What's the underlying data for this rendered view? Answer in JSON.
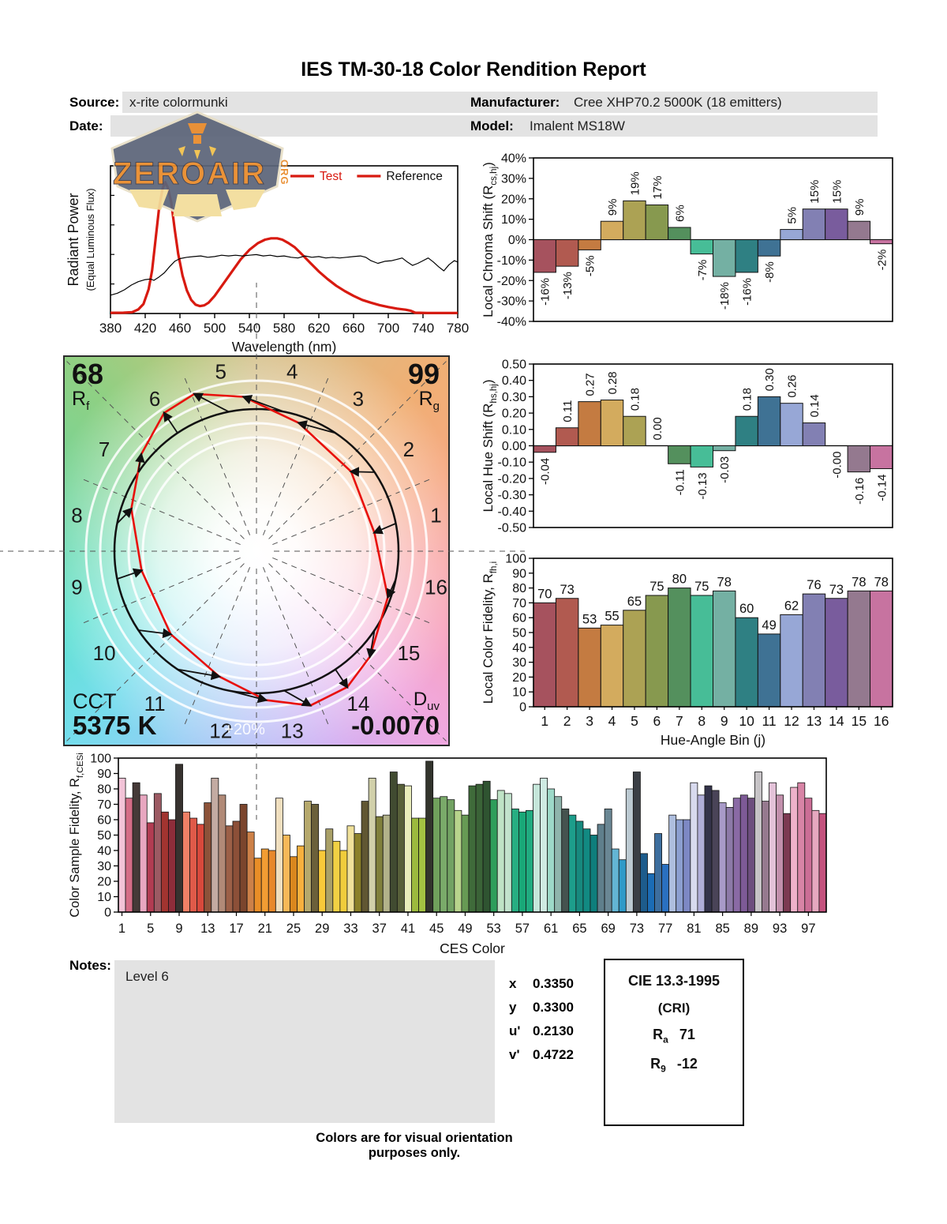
{
  "title": "IES TM-30-18 Color Rendition Report",
  "header": {
    "source_label": "Source:",
    "source_value": "x-rite colormunki",
    "date_label": "Date:",
    "date_value": "",
    "manufacturer_label": "Manufacturer:",
    "manufacturer_value": "Cree XHP70.2 5000K (18 emitters)",
    "model_label": "Model:",
    "model_value": "Imalent MS18W"
  },
  "logo": {
    "text": "ZEROAIR",
    "suffix": "ORG"
  },
  "notes": {
    "label": "Notes:",
    "value": "Level 6"
  },
  "chromaticity": {
    "rows": [
      {
        "label": "x",
        "value": "0.3350"
      },
      {
        "label": "y",
        "value": "0.3300"
      },
      {
        "label": "u'",
        "value": "0.2130"
      },
      {
        "label": "v'",
        "value": "0.4722"
      }
    ]
  },
  "cri_box": {
    "title": "CIE 13.3-1995",
    "subtitle": "(CRI)",
    "rows": [
      {
        "label": "R",
        "sub": "a",
        "value": "71"
      },
      {
        "label": "R",
        "sub": "9",
        "value": "-12"
      }
    ]
  },
  "footer": "Colors are for visual orientation purposes only.",
  "cvg": {
    "rf_value": "68",
    "rf_label": "R",
    "rf_sub": "f",
    "rg_value": "99",
    "rg_label": "R",
    "rg_sub": "g",
    "cct_label": "CCT",
    "cct_value": "5375 K",
    "duv_label": "D",
    "duv_sub": "uv",
    "duv_value": "-0.0070",
    "ring_label": "+20%",
    "bins": [
      "1",
      "2",
      "3",
      "4",
      "5",
      "6",
      "7",
      "8",
      "9",
      "10",
      "11",
      "12",
      "13",
      "14",
      "15",
      "16"
    ]
  },
  "bin_colors": [
    "#a6525e",
    "#b15a50",
    "#c47b41",
    "#d3ab5e",
    "#aca254",
    "#87994f",
    "#54905d",
    "#47bd97",
    "#74b0a3",
    "#2f8083",
    "#3f7294",
    "#97a7d6",
    "#8280b3",
    "#795c9d",
    "#94798f",
    "#c773a0"
  ],
  "chart_data": [
    {
      "id": "spd",
      "type": "line",
      "xlabel": "Wavelength (nm)",
      "ylabel": "Radiant Power",
      "ylabel2": "(Equal Luminous Flux)",
      "xlim": [
        380,
        780
      ],
      "ylim": [
        0,
        1.09
      ],
      "x_ticks": [
        380,
        420,
        460,
        500,
        540,
        580,
        620,
        660,
        700,
        740,
        780
      ],
      "legend": [
        {
          "label": "Test",
          "text_color": "#d81a10",
          "line_color": "#d81a10"
        },
        {
          "label": "Reference",
          "text_color": "#111111",
          "line_color": "#d81a10"
        }
      ],
      "series": [
        {
          "name": "Test",
          "color": "#d81a10",
          "width": 3.2,
          "x": [
            380,
            395,
            405,
            412,
            418,
            424,
            428,
            432,
            436,
            440,
            443,
            446,
            450,
            454,
            458,
            463,
            468,
            473,
            478,
            483,
            488,
            493,
            500,
            510,
            520,
            530,
            540,
            550,
            558,
            565,
            572,
            578,
            585,
            592,
            600,
            610,
            620,
            630,
            640,
            650,
            660,
            670,
            680,
            690,
            700,
            710,
            720,
            726,
            731,
            736,
            745,
            760,
            780
          ],
          "y": [
            0.005,
            0.006,
            0.01,
            0.03,
            0.07,
            0.18,
            0.32,
            0.55,
            0.78,
            0.92,
            0.97,
            0.93,
            0.82,
            0.62,
            0.44,
            0.28,
            0.17,
            0.1,
            0.065,
            0.055,
            0.06,
            0.08,
            0.13,
            0.22,
            0.31,
            0.4,
            0.47,
            0.52,
            0.545,
            0.555,
            0.555,
            0.545,
            0.52,
            0.49,
            0.44,
            0.375,
            0.31,
            0.255,
            0.205,
            0.165,
            0.13,
            0.1,
            0.08,
            0.062,
            0.048,
            0.036,
            0.028,
            0.02,
            0.006,
            0.005,
            0.004,
            0.004,
            0.004
          ]
        },
        {
          "name": "Reference",
          "color": "#000000",
          "width": 1.2,
          "x": [
            380,
            388,
            396,
            404,
            412,
            420,
            426,
            430,
            436,
            442,
            448,
            454,
            460,
            468,
            476,
            484,
            492,
            500,
            508,
            516,
            524,
            532,
            540,
            548,
            556,
            564,
            572,
            580,
            588,
            596,
            604,
            612,
            620,
            628,
            636,
            644,
            652,
            660,
            668,
            674,
            680,
            688,
            696,
            704,
            710,
            716,
            722,
            728,
            734,
            740,
            746,
            752,
            758,
            764,
            770,
            776,
            780
          ],
          "y": [
            0.135,
            0.15,
            0.175,
            0.21,
            0.235,
            0.25,
            0.255,
            0.245,
            0.27,
            0.3,
            0.345,
            0.385,
            0.405,
            0.415,
            0.42,
            0.425,
            0.415,
            0.42,
            0.43,
            0.425,
            0.43,
            0.425,
            0.43,
            0.435,
            0.425,
            0.43,
            0.42,
            0.425,
            0.415,
            0.41,
            0.425,
            0.415,
            0.42,
            0.41,
            0.415,
            0.41,
            0.415,
            0.42,
            0.425,
            0.415,
            0.39,
            0.37,
            0.385,
            0.39,
            0.4,
            0.41,
            0.38,
            0.355,
            0.37,
            0.39,
            0.41,
            0.38,
            0.345,
            0.315,
            0.36,
            0.39,
            0.38
          ]
        }
      ]
    },
    {
      "id": "chroma_shift",
      "type": "bar",
      "ylabel_parts": [
        [
          "Local Chroma Shift (R",
          0
        ],
        [
          "cs,hj",
          1
        ],
        [
          ")",
          0
        ]
      ],
      "ylim": [
        -40,
        40
      ],
      "yticks": [
        {
          "v": 40,
          "t": "40%"
        },
        {
          "v": 30,
          "t": "30%"
        },
        {
          "v": 20,
          "t": "20%"
        },
        {
          "v": 10,
          "t": "10%"
        },
        {
          "v": 0,
          "t": "0%"
        },
        {
          "v": -10,
          "t": "-10%"
        },
        {
          "v": -20,
          "t": "-20%"
        },
        {
          "v": -30,
          "t": "-30%"
        },
        {
          "v": -40,
          "t": "-40%"
        }
      ],
      "values": [
        -16,
        -13,
        -5,
        9,
        19,
        17,
        6,
        -7,
        -18,
        -16,
        -8,
        5,
        15,
        15,
        9,
        -2
      ],
      "labels": [
        "-16%",
        "-13%",
        "-5%",
        "9%",
        "19%",
        "17%",
        "6%",
        "-7%",
        "-18%",
        "-16%",
        "-8%",
        "5%",
        "15%",
        "15%",
        "9%",
        "-2%"
      ],
      "label_mode": "rotated"
    },
    {
      "id": "hue_shift",
      "type": "bar",
      "ylabel_parts": [
        [
          "Local Hue Shift (R",
          0
        ],
        [
          "hs,hj",
          1
        ],
        [
          ")",
          0
        ]
      ],
      "ylim": [
        -0.5,
        0.5
      ],
      "yticks": [
        {
          "v": 0.5,
          "t": "0.50"
        },
        {
          "v": 0.4,
          "t": "0.40"
        },
        {
          "v": 0.3,
          "t": "0.30"
        },
        {
          "v": 0.2,
          "t": "0.20"
        },
        {
          "v": 0.1,
          "t": "0.10"
        },
        {
          "v": 0,
          "t": "0.00"
        },
        {
          "v": -0.1,
          "t": "-0.10"
        },
        {
          "v": -0.2,
          "t": "-0.20"
        },
        {
          "v": -0.3,
          "t": "-0.30"
        },
        {
          "v": -0.4,
          "t": "-0.40"
        },
        {
          "v": -0.5,
          "t": "-0.50"
        }
      ],
      "values": [
        -0.04,
        0.11,
        0.27,
        0.28,
        0.18,
        0,
        -0.11,
        -0.13,
        -0.03,
        0.18,
        0.3,
        0.26,
        0.14,
        0,
        -0.16,
        -0.14
      ],
      "labels": [
        "-0.04",
        "0.11",
        "0.27",
        "0.28",
        "0.18",
        "0.00",
        "-0.11",
        "-0.13",
        "-0.03",
        "0.18",
        "0.30",
        "0.26",
        "0.14",
        "-0.00",
        "-0.16",
        "-0.14"
      ],
      "label_mode": "rotated"
    },
    {
      "id": "local_fidelity",
      "type": "bar",
      "ylabel_parts": [
        [
          "Local Color Fidelity, R",
          0
        ],
        [
          "fh,i",
          1
        ]
      ],
      "xlabel": "Hue-Angle Bin (j)",
      "ylim": [
        0,
        100
      ],
      "yticks": [
        {
          "v": 100,
          "t": "100"
        },
        {
          "v": 90,
          "t": "90"
        },
        {
          "v": 80,
          "t": "80"
        },
        {
          "v": 70,
          "t": "70"
        },
        {
          "v": 60,
          "t": "60"
        },
        {
          "v": 50,
          "t": "50"
        },
        {
          "v": 40,
          "t": "40"
        },
        {
          "v": 30,
          "t": "30"
        },
        {
          "v": 20,
          "t": "20"
        },
        {
          "v": 10,
          "t": "10"
        },
        {
          "v": 0,
          "t": "0"
        }
      ],
      "values": [
        70,
        73,
        53,
        55,
        65,
        75,
        80,
        75,
        78,
        60,
        49,
        62,
        76,
        73,
        78,
        78
      ],
      "labels": [
        "70",
        "73",
        "53",
        "55",
        "65",
        "75",
        "80",
        "75",
        "78",
        "60",
        "49",
        "62",
        "76",
        "73",
        "78",
        "78"
      ],
      "label_mode": "top",
      "xticks": [
        "1",
        "2",
        "3",
        "4",
        "5",
        "6",
        "7",
        "8",
        "9",
        "10",
        "11",
        "12",
        "13",
        "14",
        "15",
        "16"
      ]
    },
    {
      "id": "ces",
      "type": "bar",
      "ylabel_parts": [
        [
          "Color Sample Fidelity, R",
          0
        ],
        [
          "f,CESi",
          1
        ]
      ],
      "xlabel": "CES Color",
      "ylim": [
        0,
        100
      ],
      "yticks": [
        {
          "v": 100,
          "t": "100"
        },
        {
          "v": 90,
          "t": "90"
        },
        {
          "v": 80,
          "t": "80"
        },
        {
          "v": 70,
          "t": "70"
        },
        {
          "v": 60,
          "t": "60"
        },
        {
          "v": 50,
          "t": "50"
        },
        {
          "v": 40,
          "t": "40"
        },
        {
          "v": 30,
          "t": "30"
        },
        {
          "v": 20,
          "t": "20"
        },
        {
          "v": 10,
          "t": "10"
        },
        {
          "v": 0,
          "t": "0"
        }
      ],
      "xtick_step": 4,
      "values": [
        87,
        74,
        84,
        76,
        58,
        77,
        65,
        60,
        96,
        65,
        61,
        57,
        71,
        87,
        76,
        56,
        59,
        70,
        52,
        35,
        41,
        40,
        74,
        50,
        36,
        43,
        72,
        70,
        40,
        54,
        46,
        40,
        56,
        51,
        72,
        87,
        62,
        63,
        91,
        83,
        82,
        61,
        61,
        98,
        74,
        75,
        73,
        66,
        63,
        82,
        83,
        85,
        73,
        79,
        77,
        67,
        65,
        66,
        83,
        87,
        80,
        75,
        67,
        63,
        59,
        54,
        50,
        57,
        67,
        41,
        34,
        80,
        91,
        38,
        25,
        51,
        31,
        63,
        60,
        60,
        84,
        76,
        82,
        79,
        71,
        68,
        74,
        76,
        74,
        91,
        72,
        84,
        76,
        64,
        81,
        84,
        74,
        66,
        64
      ],
      "colors": [
        "#f2c3d7",
        "#d56d87",
        "#463a38",
        "#e8a7c0",
        "#b23c52",
        "#9c5a63",
        "#a23430",
        "#8e2d3a",
        "#37322f",
        "#f08066",
        "#df5a49",
        "#d8493c",
        "#8c5239",
        "#c3aba2",
        "#b18a77",
        "#9c6047",
        "#8c5038",
        "#7b452d",
        "#cd8148",
        "#e98e27",
        "#f29d33",
        "#e8882b",
        "#f0dfbf",
        "#f7b858",
        "#d9871e",
        "#f7b03e",
        "#b5a86c",
        "#6b603a",
        "#f8c93a",
        "#a9a068",
        "#f1d144",
        "#f0cc3b",
        "#f0e19a",
        "#8b8029",
        "#605632",
        "#d1d0aa",
        "#80803c",
        "#b2b28a",
        "#414b31",
        "#58603a",
        "#e9edbb",
        "#9cba3e",
        "#a3c242",
        "#32342c",
        "#70a05c",
        "#7aaa6a",
        "#72a263",
        "#b8d48c",
        "#679a54",
        "#3f6b3a",
        "#3a6337",
        "#2f5431",
        "#2e9e5b",
        "#bfe3c6",
        "#c2e3cd",
        "#27ae82",
        "#19a878",
        "#20ab80",
        "#c5e6da",
        "#cfeae2",
        "#9dd9c8",
        "#8fb5ac",
        "#45534f",
        "#1d9e8b",
        "#17897e",
        "#128a82",
        "#0e7e7c",
        "#5f7f8c",
        "#6a8794",
        "#63b5d4",
        "#2f9ac8",
        "#bccad2",
        "#3b3f45",
        "#1d5c8c",
        "#1b6cb5",
        "#3d6e9e",
        "#2a70c0",
        "#aebede",
        "#8c9fd0",
        "#7d88c4",
        "#d8daee",
        "#b0aed8",
        "#34334a",
        "#4a4458",
        "#a89ac8",
        "#8d7aa8",
        "#8a6aa5",
        "#7d5a96",
        "#6d4e7e",
        "#c6c3c6",
        "#96798f",
        "#e3c2d8",
        "#c290ac",
        "#7c3a52",
        "#eeb2ca",
        "#d884a6",
        "#cc6e96",
        "#e6a8bf",
        "#c4537e"
      ]
    }
  ]
}
